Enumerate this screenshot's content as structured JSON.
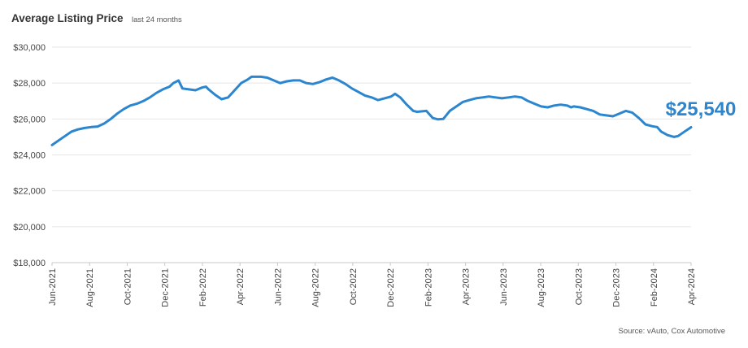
{
  "chart_data": {
    "type": "line",
    "title": "Average Listing Price",
    "subtitle": "last 24 months",
    "source": "Source: vAuto, Cox Automotive",
    "ylim": [
      18000,
      30000
    ],
    "y_ticks": [
      30000,
      28000,
      26000,
      24000,
      22000,
      20000,
      18000
    ],
    "y_tick_labels": [
      "$30,000",
      "$28,000",
      "$26,000",
      "$24,000",
      "$22,000",
      "$20,000",
      "$18,000"
    ],
    "x_tick_labels": [
      "Jun-2021",
      "Aug-2021",
      "Oct-2021",
      "Dec-2021",
      "Feb-2022",
      "Apr-2022",
      "Jun-2022",
      "Aug-2022",
      "Oct-2022",
      "Dec-2022",
      "Feb-2023",
      "Apr-2023",
      "Jun-2023",
      "Aug-2023",
      "Oct-2023",
      "Dec-2023",
      "Feb-2024",
      "Apr-2024"
    ],
    "grid": true,
    "line_color": "#2b86cf",
    "end_label": "$25,540",
    "series": [
      {
        "values": [
          [
            0,
            24550
          ],
          [
            0.25,
            24800
          ],
          [
            0.5,
            25050
          ],
          [
            0.75,
            25300
          ],
          [
            1.0,
            25420
          ],
          [
            1.25,
            25500
          ],
          [
            1.5,
            25550
          ],
          [
            1.75,
            25580
          ],
          [
            2.0,
            25750
          ],
          [
            2.25,
            26000
          ],
          [
            2.5,
            26300
          ],
          [
            2.75,
            26550
          ],
          [
            3.0,
            26750
          ],
          [
            3.25,
            26850
          ],
          [
            3.5,
            27000
          ],
          [
            3.75,
            27200
          ],
          [
            4.0,
            27450
          ],
          [
            4.25,
            27650
          ],
          [
            4.5,
            27800
          ],
          [
            4.65,
            28000
          ],
          [
            4.85,
            28150
          ],
          [
            5.0,
            27700
          ],
          [
            5.25,
            27650
          ],
          [
            5.5,
            27600
          ],
          [
            5.75,
            27750
          ],
          [
            5.9,
            27800
          ],
          [
            6.0,
            27650
          ],
          [
            6.25,
            27350
          ],
          [
            6.5,
            27100
          ],
          [
            6.75,
            27200
          ],
          [
            7.0,
            27600
          ],
          [
            7.25,
            28000
          ],
          [
            7.5,
            28200
          ],
          [
            7.65,
            28350
          ],
          [
            8.0,
            28350
          ],
          [
            8.25,
            28300
          ],
          [
            8.5,
            28150
          ],
          [
            8.75,
            28000
          ],
          [
            9.0,
            28100
          ],
          [
            9.25,
            28150
          ],
          [
            9.5,
            28150
          ],
          [
            9.75,
            28000
          ],
          [
            10.0,
            27950
          ],
          [
            10.25,
            28050
          ],
          [
            10.5,
            28200
          ],
          [
            10.75,
            28300
          ],
          [
            11.0,
            28150
          ],
          [
            11.25,
            27950
          ],
          [
            11.5,
            27700
          ],
          [
            11.75,
            27500
          ],
          [
            12.0,
            27300
          ],
          [
            12.25,
            27200
          ],
          [
            12.5,
            27050
          ],
          [
            12.75,
            27150
          ],
          [
            13.0,
            27250
          ],
          [
            13.15,
            27400
          ],
          [
            13.35,
            27200
          ],
          [
            13.6,
            26800
          ],
          [
            13.85,
            26450
          ],
          [
            14.0,
            26400
          ],
          [
            14.35,
            26450
          ],
          [
            14.6,
            26050
          ],
          [
            14.8,
            25980
          ],
          [
            15.0,
            26000
          ],
          [
            15.25,
            26450
          ],
          [
            15.5,
            26700
          ],
          [
            15.75,
            26950
          ],
          [
            16.0,
            27050
          ],
          [
            16.25,
            27150
          ],
          [
            16.5,
            27200
          ],
          [
            16.75,
            27250
          ],
          [
            17.0,
            27200
          ],
          [
            17.25,
            27150
          ],
          [
            17.5,
            27200
          ],
          [
            17.75,
            27250
          ],
          [
            18.0,
            27200
          ],
          [
            18.25,
            27000
          ],
          [
            18.5,
            26850
          ],
          [
            18.75,
            26700
          ],
          [
            19.0,
            26650
          ],
          [
            19.25,
            26750
          ],
          [
            19.5,
            26800
          ],
          [
            19.75,
            26750
          ],
          [
            19.9,
            26650
          ],
          [
            20.0,
            26700
          ],
          [
            20.25,
            26650
          ],
          [
            20.5,
            26550
          ],
          [
            20.75,
            26450
          ],
          [
            21.0,
            26250
          ],
          [
            21.25,
            26200
          ],
          [
            21.5,
            26150
          ],
          [
            21.75,
            26300
          ],
          [
            22.0,
            26450
          ],
          [
            22.25,
            26350
          ],
          [
            22.5,
            26050
          ],
          [
            22.75,
            25700
          ],
          [
            23.0,
            25600
          ],
          [
            23.2,
            25550
          ],
          [
            23.35,
            25300
          ],
          [
            23.6,
            25100
          ],
          [
            23.85,
            25000
          ],
          [
            24.0,
            25050
          ],
          [
            24.25,
            25300
          ],
          [
            24.5,
            25540
          ]
        ]
      }
    ]
  }
}
